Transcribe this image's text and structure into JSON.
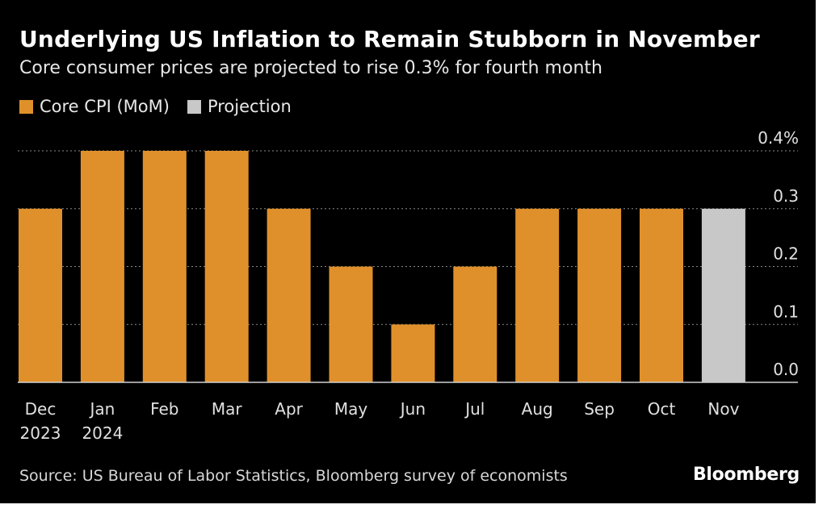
{
  "header": {
    "title": "Underlying US Inflation to Remain Stubborn in November",
    "subtitle": "Core consumer prices are projected to rise 0.3% for fourth month"
  },
  "legend": [
    {
      "label": "Core CPI (MoM)",
      "color": "#E0902A"
    },
    {
      "label": "Projection",
      "color": "#C8C8C8"
    }
  ],
  "chart_data": {
    "type": "bar",
    "title": "Underlying US Inflation to Remain Stubborn in November",
    "subtitle": "Core consumer prices are projected to rise 0.3% for fourth month",
    "xlabel": "",
    "ylabel": "",
    "ylim": [
      0,
      0.4
    ],
    "yticks": [
      0.0,
      0.1,
      0.2,
      0.3,
      0.4
    ],
    "ytick_labels": [
      "0.0",
      "0.1",
      "0.2",
      "0.3",
      "0.4%"
    ],
    "grid": true,
    "categories": [
      {
        "line1": "Dec",
        "line2": "2023"
      },
      {
        "line1": "Jan",
        "line2": "2024"
      },
      {
        "line1": "Feb",
        "line2": ""
      },
      {
        "line1": "Mar",
        "line2": ""
      },
      {
        "line1": "Apr",
        "line2": ""
      },
      {
        "line1": "May",
        "line2": ""
      },
      {
        "line1": "Jun",
        "line2": ""
      },
      {
        "line1": "Jul",
        "line2": ""
      },
      {
        "line1": "Aug",
        "line2": ""
      },
      {
        "line1": "Sep",
        "line2": ""
      },
      {
        "line1": "Oct",
        "line2": ""
      },
      {
        "line1": "Nov",
        "line2": ""
      }
    ],
    "series": [
      {
        "name": "Core CPI (MoM)",
        "color": "#E0902A",
        "values": [
          0.3,
          0.4,
          0.4,
          0.4,
          0.3,
          0.2,
          0.1,
          0.2,
          0.3,
          0.3,
          0.3,
          null
        ]
      },
      {
        "name": "Projection",
        "color": "#C8C8C8",
        "values": [
          null,
          null,
          null,
          null,
          null,
          null,
          null,
          null,
          null,
          null,
          null,
          0.3
        ]
      }
    ]
  },
  "footer": {
    "source": "Source: US Bureau of Labor Statistics, Bloomberg survey of economists",
    "brand": "Bloomberg"
  }
}
